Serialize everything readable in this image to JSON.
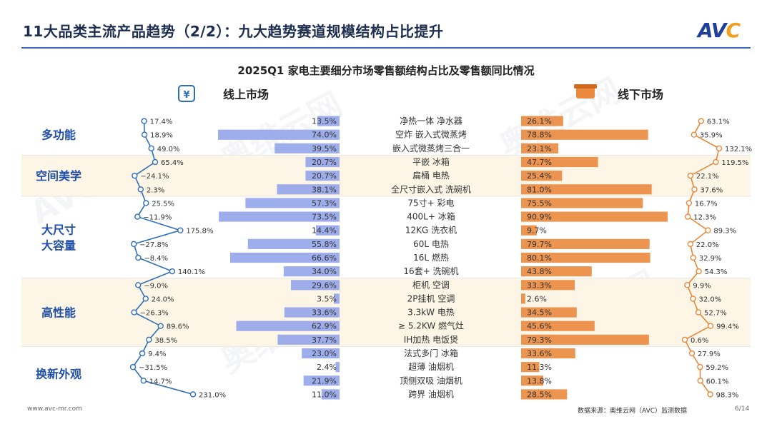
{
  "header": {
    "title": "11大品类主流产品趋势（2/2）：九大趋势赛道规模结构占比提升",
    "logo_text": "AVC"
  },
  "footer": {
    "website": "www.avc-mr.com",
    "source": "数据来源：奥维云网（AVC）监测数据",
    "page": "6/14"
  },
  "watermark": {
    "text": "AVC 奥维云网",
    "subtext": "ALL VIEW CLOUD"
  },
  "colors": {
    "online_bar": "#93a5ea",
    "offline_bar": "#ea8a3e",
    "online_line": "#2f6fb8",
    "offline_line": "#e8873a",
    "band": "#fdf6e6",
    "category_text": "#1f4fa8"
  },
  "chart_data": {
    "type": "bar",
    "title": "2025Q1 家电主要细分市场零售额结构占比及零售额同比情况",
    "online_label": "线上市场",
    "offline_label": "线下市场",
    "online_icon": "online-payment-icon",
    "offline_icon": "store-icon",
    "groups": [
      {
        "name": "多功能",
        "rows": [
          0,
          1,
          2
        ]
      },
      {
        "name": "空间美学",
        "rows": [
          3,
          4,
          5
        ]
      },
      {
        "name": "大尺寸\n大容量",
        "rows": [
          6,
          7,
          8,
          9,
          10,
          11
        ]
      },
      {
        "name": "高性能",
        "rows": [
          12,
          13,
          14,
          15,
          16
        ]
      },
      {
        "name": "换新外观",
        "rows": [
          17,
          18,
          19,
          20
        ]
      }
    ],
    "categories": [
      "净热一体 净水器",
      "空炸 嵌入式微蒸烤",
      "嵌入式微蒸烤三合一",
      "平嵌 冰箱",
      "扁桶 电热",
      "全尺寸嵌入式 洗碗机",
      "75寸+ 彩电",
      "400L+ 冰箱",
      "12KG 洗衣机",
      "60L 电热",
      "16L 燃热",
      "16套+ 洗碗机",
      "柜机 空调",
      "2P挂机 空调",
      "3.3kW 电热",
      "≥ 5.2KW 燃气灶",
      "IH加热 电饭煲",
      "法式多门 冰箱",
      "超薄 油烟机",
      "顶侧双吸 油烟机",
      "跨界 油烟机"
    ],
    "series": [
      {
        "name": "线上市场",
        "values": [
          13.5,
          74.0,
          39.5,
          20.7,
          20.7,
          38.1,
          57.3,
          73.5,
          14.4,
          55.8,
          66.6,
          34.0,
          29.6,
          3.5,
          33.6,
          62.9,
          37.7,
          23.0,
          2.4,
          21.9,
          11.0
        ]
      },
      {
        "name": "线下市场",
        "values": [
          26.1,
          78.8,
          23.1,
          47.7,
          25.4,
          81.0,
          75.5,
          90.9,
          9.7,
          79.7,
          80.1,
          43.8,
          33.3,
          2.6,
          34.5,
          45.6,
          79.3,
          33.6,
          11.3,
          13.8,
          28.5
        ]
      }
    ],
    "online_yoy": [
      17.4,
      18.9,
      49.0,
      65.4,
      -24.1,
      2.3,
      25.5,
      -11.9,
      175.8,
      -27.8,
      -8.4,
      140.1,
      -9.0,
      24.0,
      -26.3,
      89.6,
      38.5,
      9.4,
      -31.5,
      14.7,
      231.0
    ],
    "online_yoy_labels": [
      "17.4%",
      "18.9%",
      "49.0%",
      "65.4%",
      "−24.1%",
      "2.3%",
      "25.5%",
      "−11.9%",
      "175.8%",
      "−27.8%",
      "−8.4%",
      "140.1%",
      "−9.0%",
      "24.0%",
      "−26.3%",
      "89.6%",
      "38.5%",
      "9.4%",
      "−31.5%",
      "14.7%",
      "231.0%"
    ],
    "offline_yoy": [
      63.1,
      35.9,
      132.1,
      119.5,
      22.1,
      37.6,
      16.7,
      12.3,
      89.3,
      22.0,
      32.9,
      54.3,
      9.9,
      32.0,
      52.7,
      99.4,
      0.6,
      27.9,
      59.2,
      60.1,
      98.3
    ],
    "offline_yoy_labels": [
      "63.1%",
      "35.9%",
      "132.1%",
      "119.5%",
      "22.1%",
      "37.6%",
      "16.7%",
      "12.3%",
      "89.3%",
      "22.0%",
      "32.9%",
      "54.3%",
      "9.9%",
      "32.0%",
      "52.7%",
      "99.4%",
      "0.6%",
      "27.9%",
      "59.2%",
      "60.1%",
      "98.3%"
    ],
    "online_value_labels": [
      "13.5%",
      "74.0%",
      "39.5%",
      "20.7%",
      "20.7%",
      "38.1%",
      "57.3%",
      "73.5%",
      "14.4%",
      "55.8%",
      "66.6%",
      "34.0%",
      "29.6%",
      "3.5%",
      "33.6%",
      "62.9%",
      "37.7%",
      "23.0%",
      "2.4%",
      "21.9%",
      "11.0%"
    ],
    "offline_value_labels": [
      "26.1%",
      "78.8%",
      "23.1%",
      "47.7%",
      "25.4%",
      "81.0%",
      "75.5%",
      "90.9%",
      "9.7%",
      "79.7%",
      "80.1%",
      "43.8%",
      "33.3%",
      "2.6%",
      "34.5%",
      "45.6%",
      "79.3%",
      "33.6%",
      "11.3%",
      "13.8%",
      "28.5%"
    ]
  }
}
